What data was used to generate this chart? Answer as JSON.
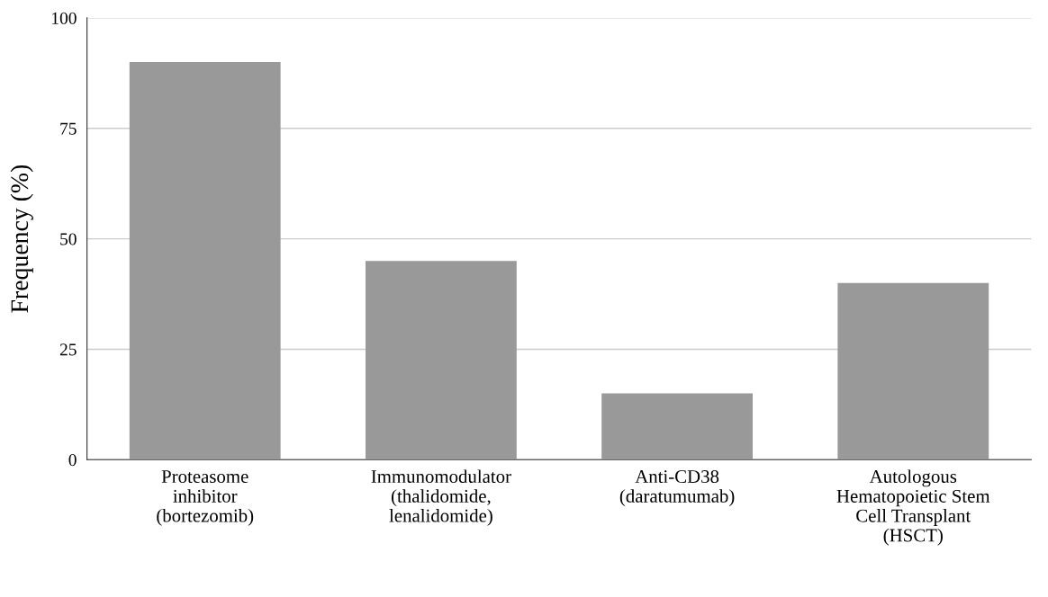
{
  "chart_data": {
    "type": "bar",
    "ylabel": "Frequency (%)",
    "categories": [
      "Proteasome\ninhibitor\n(bortezomib)",
      "Immunomodulator\n(thalidomide,\nlenalidomide)",
      "Anti-CD38\n(daratumumab)",
      "Autologous\nHematopoietic Stem\nCell Transplant\n(HSCT)"
    ],
    "values": [
      90,
      45,
      15,
      40
    ],
    "color": "#999999",
    "ylim": [
      0,
      100
    ],
    "yticks": [
      0,
      25,
      50,
      75,
      100
    ],
    "grid": "y"
  }
}
